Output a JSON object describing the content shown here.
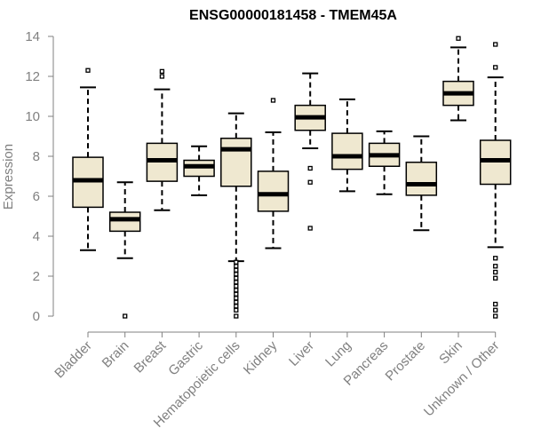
{
  "chart_data": {
    "type": "box",
    "title": "ENSG00000181458 - TMEM45A",
    "xlabel": "",
    "ylabel": "Expression",
    "ylim": [
      0,
      14
    ],
    "yticks": [
      0,
      2,
      4,
      6,
      8,
      10,
      12,
      14
    ],
    "box_fill": "#efe8d0",
    "axis_color": "#808080",
    "categories": [
      "Bladder",
      "Brain",
      "Breast",
      "Gastric",
      "Hematopoietic cells",
      "Kidney",
      "Liver",
      "Lung",
      "Pancreas",
      "Prostate",
      "Skin",
      "Unknown / Other"
    ],
    "boxes": [
      {
        "q1": 5.45,
        "median": 6.8,
        "q3": 7.95,
        "whisker_low": 3.3,
        "whisker_high": 11.45,
        "outliers": [
          12.3
        ]
      },
      {
        "q1": 4.25,
        "median": 4.85,
        "q3": 5.2,
        "whisker_low": 2.9,
        "whisker_high": 6.7,
        "outliers": [
          0
        ]
      },
      {
        "q1": 6.75,
        "median": 7.8,
        "q3": 8.65,
        "whisker_low": 5.3,
        "whisker_high": 11.35,
        "outliers": [
          12.0,
          12.25
        ]
      },
      {
        "q1": 7.0,
        "median": 7.5,
        "q3": 7.8,
        "whisker_low": 6.05,
        "whisker_high": 8.5,
        "outliers": []
      },
      {
        "q1": 6.5,
        "median": 8.35,
        "q3": 8.9,
        "whisker_low": 2.75,
        "whisker_high": 10.15,
        "outliers": [
          0,
          0.3,
          0.5,
          0.7,
          0.9,
          1.1,
          1.3,
          1.5,
          1.7,
          1.9,
          2.1,
          2.3,
          2.5,
          2.7
        ]
      },
      {
        "q1": 5.25,
        "median": 6.1,
        "q3": 7.25,
        "whisker_low": 3.4,
        "whisker_high": 9.2,
        "outliers": [
          10.8
        ]
      },
      {
        "q1": 9.3,
        "median": 9.95,
        "q3": 10.55,
        "whisker_low": 8.4,
        "whisker_high": 12.15,
        "outliers": [
          7.4,
          6.7,
          4.4
        ]
      },
      {
        "q1": 7.35,
        "median": 8.0,
        "q3": 9.15,
        "whisker_low": 6.25,
        "whisker_high": 10.85,
        "outliers": []
      },
      {
        "q1": 7.5,
        "median": 8.05,
        "q3": 8.65,
        "whisker_low": 6.1,
        "whisker_high": 9.25,
        "outliers": []
      },
      {
        "q1": 6.05,
        "median": 6.6,
        "q3": 7.7,
        "whisker_low": 4.3,
        "whisker_high": 9.0,
        "outliers": []
      },
      {
        "q1": 10.55,
        "median": 11.15,
        "q3": 11.75,
        "whisker_low": 9.8,
        "whisker_high": 13.45,
        "outliers": [
          13.9
        ]
      },
      {
        "q1": 6.6,
        "median": 7.8,
        "q3": 8.8,
        "whisker_low": 3.45,
        "whisker_high": 11.95,
        "outliers": [
          0,
          0.3,
          0.6,
          1.9,
          2.2,
          2.5,
          2.9,
          12.45,
          13.6
        ]
      }
    ]
  }
}
